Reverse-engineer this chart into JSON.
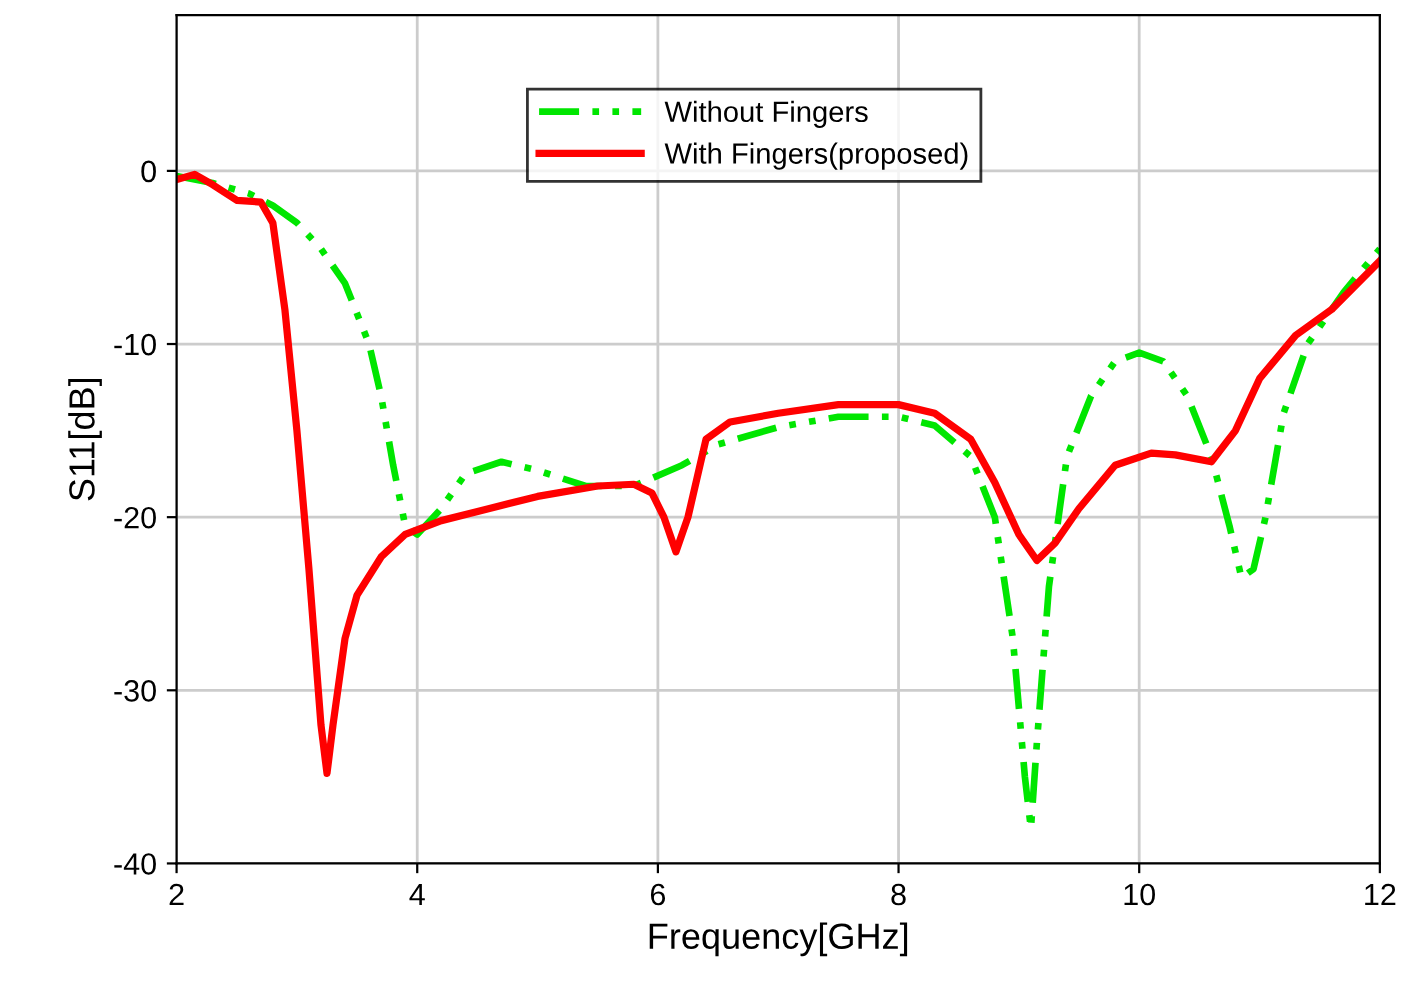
{
  "chart_data": {
    "type": "line",
    "xlabel": "Frequency[GHz]",
    "ylabel": "S11[dB]",
    "xlim": [
      2,
      12
    ],
    "xticks": [
      2,
      4,
      6,
      8,
      10,
      12
    ],
    "ylim": [
      -40,
      9
    ],
    "yticks": [
      -40,
      -30,
      -20,
      -10,
      0
    ],
    "grid": true,
    "legend": "top",
    "marker": "none",
    "series": [
      {
        "name": "Without Fingers",
        "color": "#00e600",
        "line_style": "dashed",
        "x": [
          2,
          2.3,
          2.6,
          2.8,
          3.0,
          3.2,
          3.4,
          3.6,
          3.7,
          3.8,
          3.9,
          4.0,
          4.2,
          4.4,
          4.7,
          5.0,
          5.4,
          5.8,
          6.2,
          6.5,
          7,
          7.5,
          8,
          8.3,
          8.6,
          8.8,
          8.95,
          9.05,
          9.1,
          9.15,
          9.25,
          9.4,
          9.6,
          9.8,
          10,
          10.2,
          10.4,
          10.6,
          10.75,
          10.85,
          10.95,
          11.05,
          11.2,
          11.4,
          11.7,
          12
        ],
        "values": [
          -0.3,
          -0.7,
          -1.3,
          -2,
          -3,
          -4.5,
          -6.5,
          -10,
          -13,
          -17,
          -20.5,
          -21,
          -19.5,
          -17.5,
          -16.8,
          -17.3,
          -18.2,
          -18.2,
          -17,
          -15.8,
          -14.8,
          -14.2,
          -14.2,
          -14.7,
          -16.5,
          -20,
          -27,
          -35,
          -38,
          -33,
          -24,
          -16.5,
          -13,
          -11,
          -10.5,
          -11,
          -13,
          -16.5,
          -20.5,
          -23.5,
          -23,
          -20,
          -14,
          -10,
          -7,
          -4.5
        ]
      },
      {
        "name": "With Fingers(proposed)",
        "color": "#ff0000",
        "line_style": "solid",
        "x": [
          2,
          2.15,
          2.3,
          2.5,
          2.7,
          2.8,
          2.9,
          3.0,
          3.1,
          3.2,
          3.25,
          3.3,
          3.4,
          3.5,
          3.7,
          3.9,
          4.2,
          4.6,
          5,
          5.5,
          5.8,
          5.95,
          6.05,
          6.15,
          6.25,
          6.4,
          6.6,
          7,
          7.5,
          8,
          8.3,
          8.6,
          8.8,
          9.0,
          9.15,
          9.3,
          9.5,
          9.8,
          10.1,
          10.3,
          10.6,
          10.8,
          11.0,
          11.3,
          11.6,
          12
        ],
        "values": [
          -0.5,
          -0.2,
          -0.8,
          -1.7,
          -1.8,
          -3,
          -8,
          -15,
          -23,
          -32,
          -34.8,
          -32,
          -27,
          -24.5,
          -22.3,
          -21,
          -20.2,
          -19.5,
          -18.8,
          -18.2,
          -18.1,
          -18.6,
          -20,
          -22,
          -20,
          -15.5,
          -14.5,
          -14,
          -13.5,
          -13.5,
          -14,
          -15.5,
          -18,
          -21,
          -22.5,
          -21.5,
          -19.5,
          -17,
          -16.3,
          -16.4,
          -16.8,
          -15,
          -12,
          -9.5,
          -8,
          -5.2
        ]
      }
    ]
  }
}
